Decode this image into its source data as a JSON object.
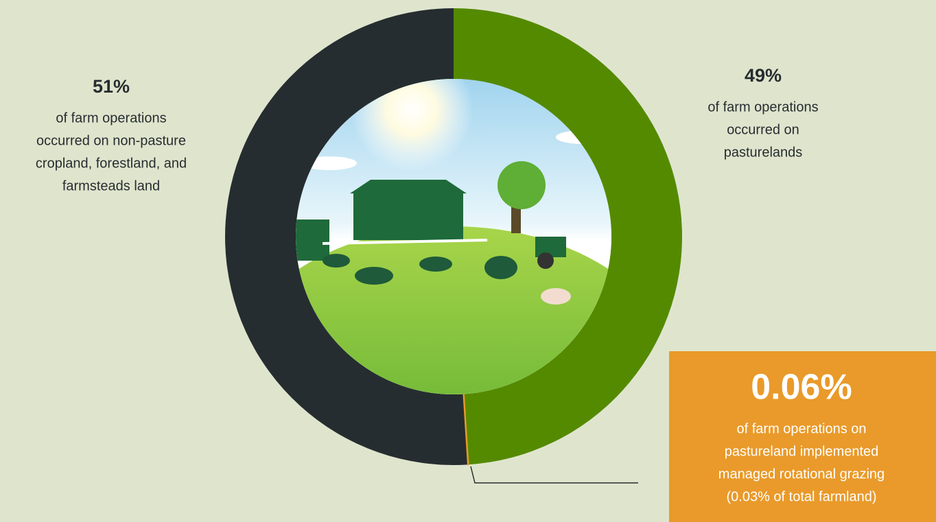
{
  "chart_data": {
    "type": "donut",
    "slices": [
      {
        "name": "pasturelands",
        "color": "#548a00",
        "value": 49,
        "value_label": "49%",
        "description": [
          "of farm operations",
          "occurred on",
          "pasturelands"
        ]
      },
      {
        "name": "non-pasture",
        "color": "#262d30",
        "value": 51,
        "value_label": "51%",
        "description": [
          "of farm operations",
          "occurred on non-pasture",
          "cropland, forestland, and",
          "farmsteads land"
        ]
      }
    ],
    "callout": {
      "color": "#e99a2a",
      "value": 0.06,
      "value_label": "0.06%",
      "description": [
        "of farm operations on",
        "pastureland implemented",
        "managed rotational grazing",
        "(0.03% of total farmland)"
      ]
    }
  }
}
